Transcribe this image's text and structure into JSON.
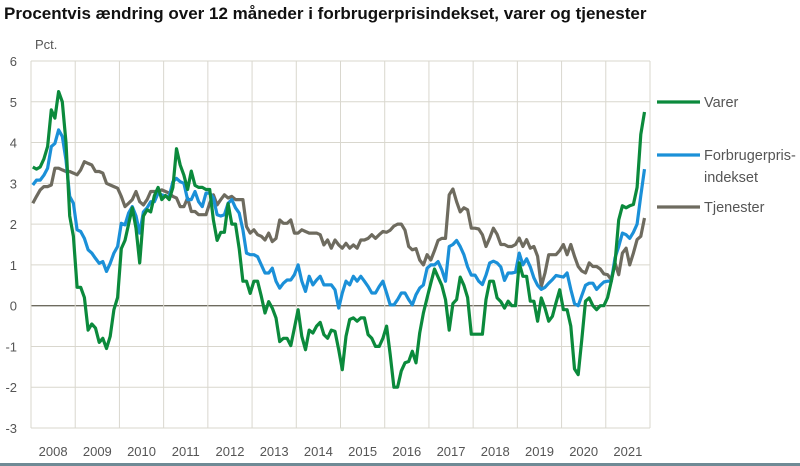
{
  "title": "Procentvis ændring over 12 måneder i forbrugerprisindekset, varer og tjenester",
  "chart_data": {
    "type": "line",
    "title": "Procentvis ændring over 12 måneder i forbrugerprisindekset, varer og tjenester",
    "ylabel": "Pct.",
    "xlabel": "",
    "ylim": [
      -3,
      6
    ],
    "yticks": [
      "6",
      "5",
      "4",
      "3",
      "2",
      "1",
      "0",
      "-1",
      "-2",
      "-3"
    ],
    "xticks": [
      "2008",
      "2009",
      "2010",
      "2011",
      "2012",
      "2013",
      "2014",
      "2015",
      "2016",
      "2017",
      "2018",
      "2019",
      "2020",
      "2021"
    ],
    "x_range": [
      "2008-01",
      "2021-11"
    ],
    "x_frequency": "monthly",
    "grid": true,
    "legend_position": "right",
    "series": [
      {
        "name": "Varer",
        "legend_lines": [
          "Varer"
        ],
        "color": "#0b8a3c",
        "values": [
          3.4,
          3.35,
          3.4,
          3.6,
          3.9,
          4.8,
          4.6,
          5.25,
          5.0,
          4.0,
          2.2,
          1.7,
          0.45,
          0.45,
          0.2,
          -0.6,
          -0.45,
          -0.55,
          -0.9,
          -0.8,
          -1.05,
          -0.75,
          -0.1,
          0.2,
          1.4,
          1.6,
          2.0,
          2.4,
          1.9,
          1.05,
          2.2,
          2.35,
          2.3,
          2.7,
          2.9,
          2.6,
          2.7,
          2.6,
          2.9,
          3.85,
          3.45,
          3.2,
          2.85,
          3.3,
          2.95,
          2.9,
          2.9,
          2.85,
          2.85,
          2.1,
          1.6,
          1.8,
          1.8,
          2.5,
          2.0,
          2.0,
          1.4,
          0.6,
          0.6,
          0.3,
          0.6,
          0.6,
          0.23,
          -0.18,
          0.1,
          -0.06,
          -0.3,
          -0.88,
          -0.8,
          -0.8,
          -0.98,
          -0.55,
          -0.1,
          -0.75,
          -1.08,
          -0.6,
          -0.67,
          -0.5,
          -0.41,
          -0.71,
          -0.8,
          -0.6,
          -0.63,
          -1.08,
          -1.57,
          -0.75,
          -0.34,
          -0.3,
          -0.38,
          -0.3,
          -0.3,
          -0.71,
          -0.8,
          -1.0,
          -1.0,
          -0.8,
          -0.5,
          -1.2,
          -2.0,
          -2.0,
          -1.6,
          -1.4,
          -1.37,
          -1.12,
          -1.4,
          -0.67,
          -0.18,
          0.19,
          0.55,
          0.9,
          0.7,
          0.5,
          0.15,
          -0.6,
          0.05,
          0.15,
          0.7,
          0.5,
          0.2,
          -0.7,
          -0.7,
          -0.7,
          -0.7,
          0.15,
          0.6,
          0.6,
          0.19,
          0.1,
          -0.06,
          0.11,
          0.0,
          0.0,
          1.05,
          0.72,
          0.72,
          0.11,
          0.11,
          -0.38,
          0.19,
          -0.06,
          -0.38,
          -0.26,
          0.07,
          0.39,
          -0.1,
          -0.1,
          -0.5,
          -1.55,
          -1.69,
          -0.83,
          0.11,
          0.19,
          0.0,
          -0.1,
          0.0,
          0.0,
          0.2,
          0.6,
          1.05,
          2.1,
          2.45,
          2.4,
          2.45,
          2.48,
          2.9,
          4.2,
          4.75
        ]
      },
      {
        "name": "Forbrugerprisindekset",
        "legend_lines": [
          "Forbrugerpris-",
          "indekset"
        ],
        "color": "#1b90d8",
        "values": [
          2.96,
          3.08,
          3.08,
          3.2,
          3.37,
          3.9,
          3.98,
          4.31,
          4.15,
          3.57,
          2.68,
          2.51,
          1.86,
          1.82,
          1.65,
          1.37,
          1.29,
          1.16,
          1.04,
          1.08,
          0.84,
          1.04,
          1.29,
          1.45,
          2.02,
          1.98,
          2.27,
          2.43,
          2.2,
          1.78,
          2.3,
          2.4,
          2.55,
          2.55,
          2.76,
          2.72,
          2.68,
          2.68,
          3.04,
          3.12,
          3.04,
          3.0,
          2.6,
          2.6,
          2.8,
          2.55,
          2.43,
          2.76,
          2.76,
          2.64,
          2.23,
          2.2,
          2.23,
          2.51,
          2.6,
          2.4,
          2.27,
          1.86,
          1.29,
          1.25,
          1.25,
          1.2,
          1.0,
          0.8,
          0.8,
          0.92,
          0.6,
          0.43,
          0.55,
          0.63,
          0.63,
          0.76,
          1.0,
          0.6,
          0.35,
          0.72,
          0.51,
          0.63,
          0.72,
          0.51,
          0.51,
          0.51,
          0.39,
          -0.06,
          0.31,
          0.6,
          0.51,
          0.72,
          0.6,
          0.72,
          0.6,
          0.47,
          0.31,
          0.31,
          0.47,
          0.6,
          0.31,
          0.02,
          0.02,
          0.15,
          0.31,
          0.31,
          0.15,
          0.02,
          0.27,
          0.43,
          0.51,
          0.92,
          1.0,
          1.0,
          1.08,
          0.88,
          0.6,
          1.45,
          1.5,
          1.6,
          1.45,
          1.25,
          0.95,
          0.75,
          0.75,
          0.6,
          0.52,
          0.75,
          1.05,
          1.09,
          1.05,
          0.95,
          0.62,
          0.8,
          0.8,
          0.82,
          1.29,
          1.0,
          1.15,
          0.95,
          0.68,
          0.5,
          0.4,
          0.45,
          0.55,
          0.64,
          0.74,
          0.72,
          0.7,
          0.8,
          0.4,
          0.05,
          0.0,
          0.25,
          0.5,
          0.55,
          0.55,
          0.4,
          0.5,
          0.58,
          0.6,
          0.6,
          1.17,
          1.45,
          1.78,
          1.74,
          1.65,
          1.8,
          2.0,
          2.7,
          3.35
        ]
      },
      {
        "name": "Tjenester",
        "legend_lines": [
          "Tjenester"
        ],
        "color": "#6e6b5f",
        "values": [
          2.51,
          2.68,
          2.84,
          2.92,
          2.92,
          2.96,
          3.37,
          3.37,
          3.33,
          3.29,
          3.29,
          3.25,
          3.21,
          3.33,
          3.53,
          3.49,
          3.45,
          3.29,
          3.29,
          3.25,
          3.0,
          2.96,
          2.92,
          2.88,
          2.68,
          2.43,
          2.51,
          2.6,
          2.8,
          2.55,
          2.47,
          2.6,
          2.8,
          2.8,
          2.8,
          2.84,
          2.8,
          2.76,
          2.68,
          2.64,
          2.43,
          2.43,
          2.64,
          2.31,
          2.31,
          2.23,
          2.23,
          2.23,
          2.51,
          2.72,
          2.47,
          2.6,
          2.72,
          2.64,
          2.68,
          2.6,
          2.6,
          2.6,
          1.94,
          1.78,
          1.86,
          1.74,
          1.7,
          1.61,
          1.78,
          1.57,
          1.65,
          2.1,
          2.02,
          2.02,
          2.1,
          1.78,
          1.78,
          1.86,
          1.82,
          1.78,
          1.78,
          1.78,
          1.74,
          1.49,
          1.61,
          1.41,
          1.61,
          1.49,
          1.41,
          1.53,
          1.41,
          1.49,
          1.41,
          1.61,
          1.61,
          1.65,
          1.74,
          1.65,
          1.74,
          1.82,
          1.8,
          1.85,
          1.95,
          2.0,
          2.0,
          1.85,
          1.45,
          1.37,
          1.4,
          1.12,
          1.0,
          1.25,
          1.12,
          1.35,
          1.6,
          1.65,
          1.65,
          2.72,
          2.86,
          2.55,
          2.3,
          2.4,
          2.35,
          1.9,
          1.9,
          1.88,
          1.74,
          1.45,
          1.66,
          1.9,
          1.75,
          1.5,
          1.5,
          1.45,
          1.45,
          1.5,
          1.66,
          1.45,
          1.62,
          1.41,
          1.45,
          1.21,
          0.47,
          0.8,
          1.25,
          1.25,
          1.25,
          1.35,
          1.5,
          1.25,
          1.5,
          1.21,
          0.96,
          0.85,
          0.8,
          1.05,
          0.96,
          0.96,
          0.9,
          0.78,
          0.76,
          0.64,
          1.05,
          0.76,
          1.29,
          1.41,
          1.0,
          1.29,
          1.62,
          1.7,
          2.15
        ]
      }
    ]
  }
}
